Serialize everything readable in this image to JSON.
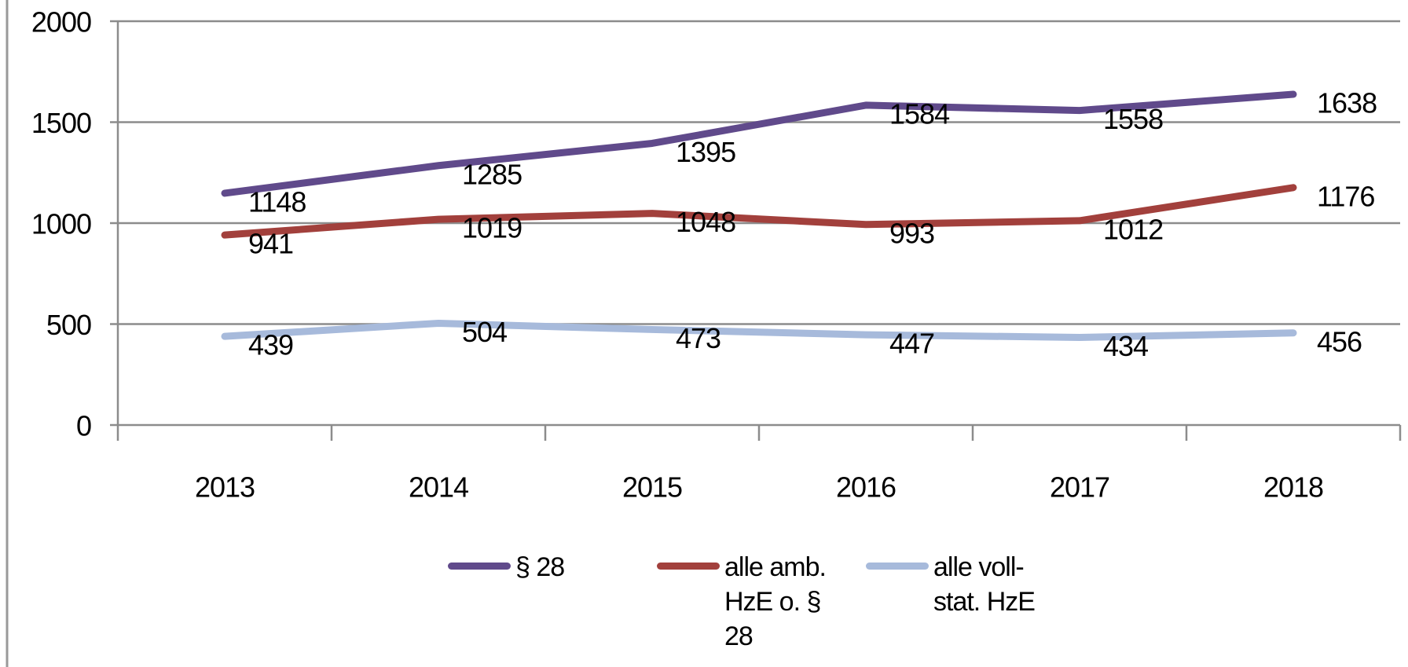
{
  "chart_data": {
    "type": "line",
    "categories": [
      "2013",
      "2014",
      "2015",
      "2016",
      "2017",
      "2018"
    ],
    "series": [
      {
        "name": "§ 28",
        "color": "#604a8b",
        "values": [
          1148,
          1285,
          1395,
          1584,
          1558,
          1638
        ]
      },
      {
        "name": "alle amb. HzE o. § 28",
        "color": "#a2403c",
        "values": [
          941,
          1019,
          1048,
          993,
          1012,
          1176
        ]
      },
      {
        "name": "alle voll-stat. HzE",
        "color": "#a7badb",
        "values": [
          439,
          504,
          473,
          447,
          434,
          456
        ]
      }
    ],
    "ylim": [
      0,
      2000
    ],
    "yticks": [
      0,
      500,
      1000,
      1500,
      2000
    ],
    "grid": true,
    "legend": "bottom"
  }
}
